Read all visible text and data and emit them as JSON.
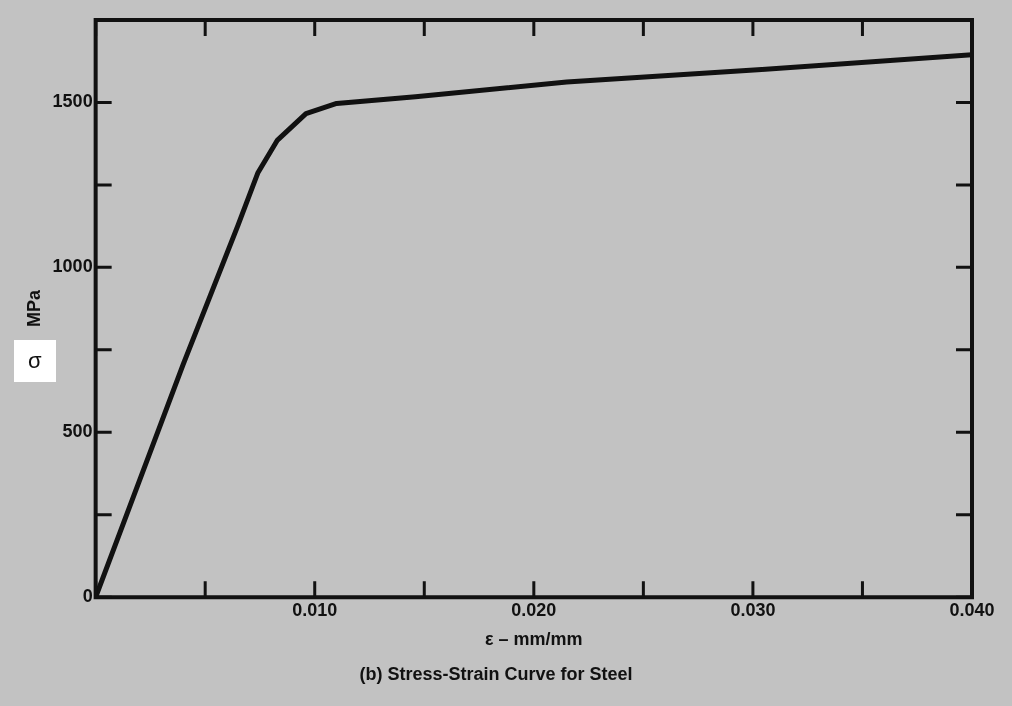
{
  "chart_data": {
    "type": "line",
    "title": "(b) Stress-Strain Curve for Steel",
    "xlabel": "ε – mm/mm",
    "ylabel": "MPa",
    "annotations": [
      "σ"
    ],
    "x": [
      0,
      0.004,
      0.0065,
      0.0074,
      0.0083,
      0.0096,
      0.011,
      0.0146,
      0.0215,
      0.0304,
      0.04
    ],
    "series": [
      {
        "color": "#111111",
        "values": [
          0,
          707,
          1128,
          1286,
          1386,
          1466,
          1497,
          1517,
          1562,
          1600,
          1645
        ]
      }
    ],
    "xlim": [
      0,
      0.04
    ],
    "xticks": [
      {
        "value": 0,
        "label": null
      },
      {
        "value": 0.005,
        "label": null
      },
      {
        "value": 0.01,
        "label": "0.010"
      },
      {
        "value": 0.015,
        "label": null
      },
      {
        "value": 0.02,
        "label": "0.020"
      },
      {
        "value": 0.025,
        "label": null
      },
      {
        "value": 0.03,
        "label": "0.030"
      },
      {
        "value": 0.035,
        "label": null
      },
      {
        "value": 0.04,
        "label": "0.040"
      }
    ],
    "ylim": [
      0,
      1750
    ],
    "yticks": [
      0,
      {
        "value": 250,
        "label": null
      },
      500,
      {
        "value": 750,
        "label": null
      },
      1000,
      {
        "value": 1250,
        "label": null
      },
      1500
    ],
    "grid": false,
    "legend": false,
    "marker": "none",
    "line_style": "solid"
  }
}
